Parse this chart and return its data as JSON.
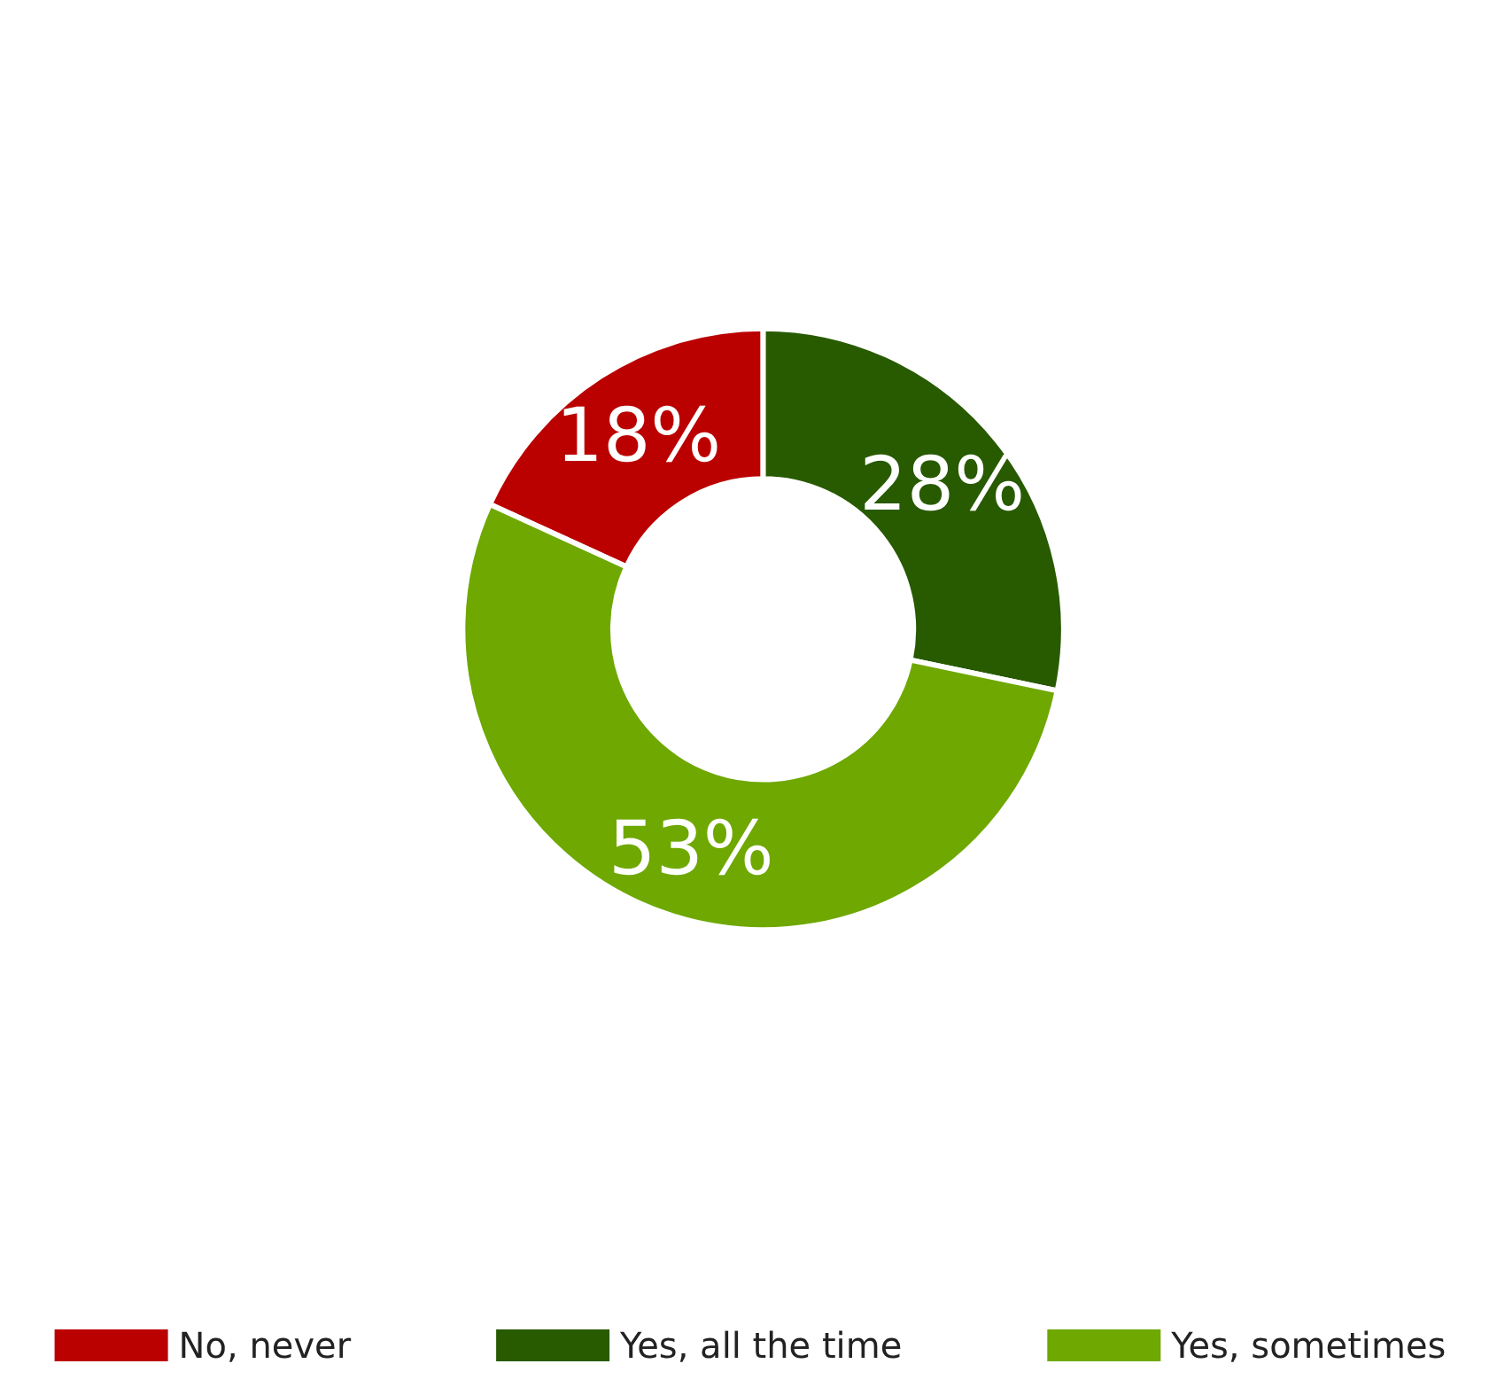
{
  "chart_data": {
    "type": "donut",
    "categories": [
      "No, never",
      "Yes, all the time",
      "Yes, sometimes"
    ],
    "values": [
      18,
      28,
      53
    ],
    "colors": [
      "#bb0000",
      "#285a00",
      "#6ea800"
    ],
    "value_labels": [
      "18%",
      "28%",
      "53%"
    ],
    "legend": "bottom"
  }
}
